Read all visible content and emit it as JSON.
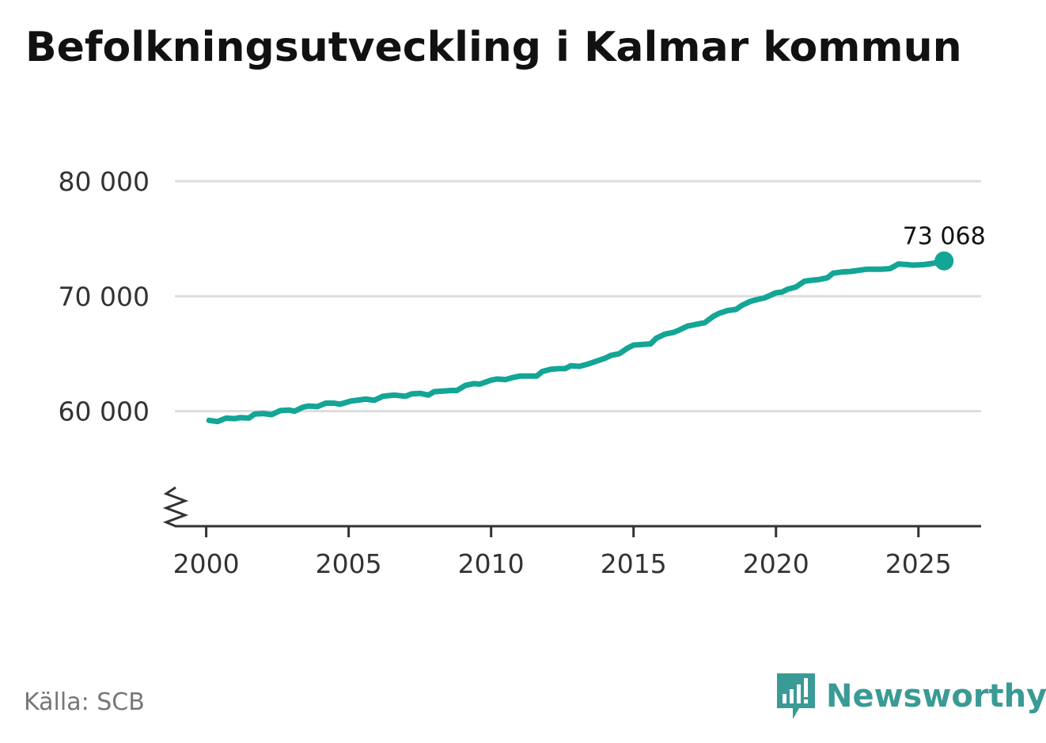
{
  "title": "Befolkningsutveckling i Kalmar kommun",
  "source": "Källa: SCB",
  "brand": {
    "name": "Newsworthy",
    "logo_icon": "newsworthy-logo-icon"
  },
  "colors": {
    "line": "#13a595",
    "grid": "#dddddd",
    "axis": "#333333",
    "brand": "#3a9a95"
  },
  "chart_data": {
    "type": "line",
    "title": "Befolkningsutveckling i Kalmar kommun",
    "xlabel": "",
    "ylabel": "",
    "xlim": [
      1998.9,
      2027.2
    ],
    "ylim": [
      50000,
      80000
    ],
    "y_axis_broken": true,
    "grid": "horizontal",
    "yticks": [
      60000,
      70000,
      80000
    ],
    "ytick_labels": [
      "60 000",
      "70 000",
      "80 000"
    ],
    "xticks": [
      2000,
      2005,
      2010,
      2015,
      2020,
      2025
    ],
    "xtick_labels": [
      "2000",
      "2005",
      "2010",
      "2015",
      "2020",
      "2025"
    ],
    "end_label": "73 068",
    "series": [
      {
        "x": [
          2000.1,
          2000.4,
          2000.7,
          2001.0,
          2001.2,
          2001.5,
          2001.7,
          2002.0,
          2002.3,
          2002.6,
          2002.9,
          2003.1,
          2003.4,
          2003.6,
          2003.9,
          2004.2,
          2004.5,
          2004.7,
          2005.1,
          2005.3,
          2005.6,
          2005.9,
          2006.2,
          2006.4,
          2006.6,
          2007.0,
          2007.2,
          2007.5,
          2007.8,
          2008.0,
          2008.3,
          2008.6,
          2008.8,
          2009.1,
          2009.4,
          2009.6,
          2010.0,
          2010.2,
          2010.5,
          2010.8,
          2011.0,
          2011.3,
          2011.6,
          2011.8,
          2012.1,
          2012.4,
          2012.6,
          2012.8,
          2013.1,
          2013.4,
          2013.7,
          2014.0,
          2014.2,
          2014.5,
          2014.8,
          2015.0,
          2015.3,
          2015.6,
          2015.8,
          2016.1,
          2016.4,
          2016.6,
          2016.9,
          2017.2,
          2017.5,
          2017.8,
          2018.0,
          2018.3,
          2018.6,
          2018.8,
          2019.1,
          2019.4,
          2019.6,
          2020.0,
          2020.2,
          2020.4,
          2020.7,
          2021.0,
          2021.3,
          2021.5,
          2021.8,
          2022.0,
          2022.3,
          2022.6,
          2022.9,
          2023.2,
          2023.4,
          2023.7,
          2024.0,
          2024.3,
          2024.6,
          2024.8,
          2025.2,
          2025.5,
          2025.9
        ],
        "y": [
          59200,
          59100,
          59400,
          59350,
          59450,
          59400,
          59750,
          59800,
          59700,
          60050,
          60100,
          60000,
          60350,
          60450,
          60400,
          60700,
          60700,
          60600,
          60900,
          60950,
          61050,
          60950,
          61300,
          61350,
          61400,
          61300,
          61500,
          61550,
          61400,
          61700,
          61750,
          61800,
          61800,
          62250,
          62400,
          62350,
          62700,
          62800,
          62750,
          62950,
          63050,
          63050,
          63050,
          63450,
          63650,
          63700,
          63700,
          63950,
          63900,
          64100,
          64350,
          64600,
          64850,
          65000,
          65500,
          65750,
          65800,
          65850,
          66350,
          66700,
          66850,
          67050,
          67400,
          67550,
          67700,
          68250,
          68500,
          68750,
          68850,
          69200,
          69550,
          69750,
          69850,
          70300,
          70350,
          70600,
          70800,
          71300,
          71400,
          71450,
          71600,
          72000,
          72100,
          72150,
          72250,
          72350,
          72350,
          72350,
          72400,
          72800,
          72750,
          72700,
          72750,
          72850,
          73068
        ]
      }
    ]
  }
}
